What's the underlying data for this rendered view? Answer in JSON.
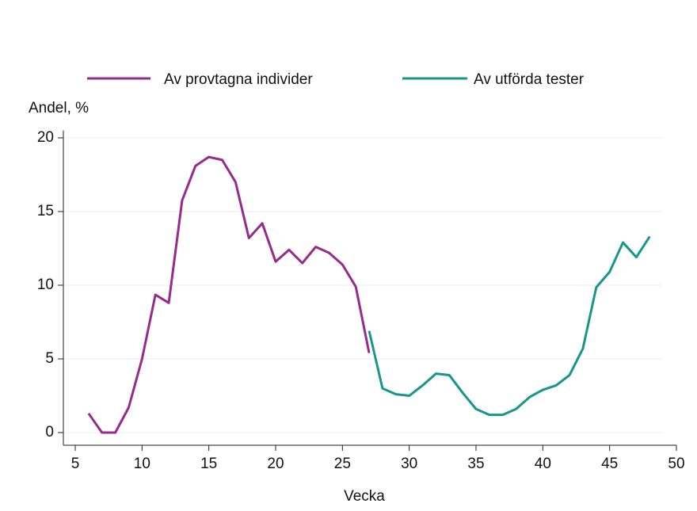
{
  "chart_data": {
    "type": "line",
    "y_label": "Andel, %",
    "x_label": "Vecka",
    "x": [
      6,
      7,
      8,
      9,
      10,
      11,
      12,
      13,
      14,
      15,
      16,
      17,
      18,
      19,
      20,
      21,
      22,
      23,
      24,
      25,
      26,
      27,
      28,
      29,
      30,
      31,
      32,
      33,
      34,
      35,
      36,
      37,
      38,
      39,
      40,
      41,
      42,
      43,
      44,
      45,
      46,
      47,
      48
    ],
    "series": [
      {
        "name": "Av provtagna individer",
        "color": "#962a8d",
        "values": [
          1.3,
          0,
          0,
          1.7,
          5.0,
          9.35,
          8.8,
          15.75,
          18.1,
          18.7,
          18.5,
          17.0,
          13.2,
          14.2,
          11.6,
          12.4,
          11.5,
          12.6,
          12.2,
          11.4,
          9.9,
          5.4,
          null,
          null,
          null,
          null,
          null,
          null,
          null,
          null,
          null,
          null,
          null,
          null,
          null,
          null,
          null,
          null,
          null,
          null,
          null,
          null,
          null
        ]
      },
      {
        "name": "Av utförda tester",
        "color": "#17968a",
        "values": [
          null,
          null,
          null,
          null,
          null,
          null,
          null,
          null,
          null,
          null,
          null,
          null,
          null,
          null,
          null,
          null,
          null,
          null,
          null,
          null,
          null,
          6.9,
          3.0,
          2.6,
          2.5,
          3.2,
          4.0,
          3.9,
          2.7,
          1.6,
          1.2,
          1.2,
          1.6,
          2.4,
          2.9,
          3.2,
          3.9,
          5.7,
          9.85,
          10.9,
          12.9,
          11.9,
          13.3
        ]
      }
    ],
    "xlim": [
      5,
      50
    ],
    "xticks": [
      5,
      10,
      15,
      20,
      25,
      30,
      35,
      40,
      45,
      50
    ],
    "ylim": [
      -0.86,
      20.5
    ],
    "yticks": [
      0,
      5,
      10,
      15,
      20
    ],
    "grid": true
  }
}
